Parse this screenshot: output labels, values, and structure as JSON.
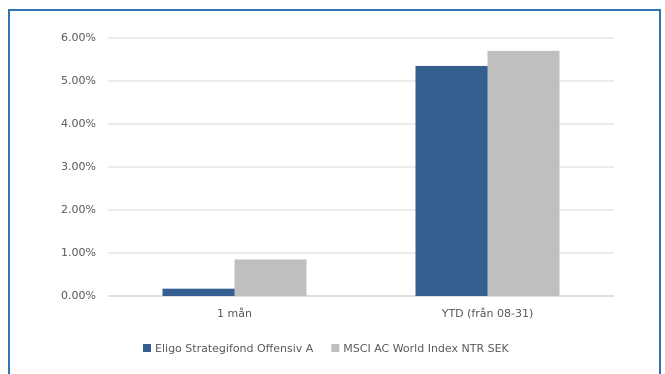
{
  "chart_data": {
    "type": "bar",
    "categories": [
      "1 mån",
      "YTD (från 08-31)"
    ],
    "series": [
      {
        "name": "Eligo Strategifond Offensiv A",
        "color": "#335f91",
        "values": [
          0.17,
          5.35
        ]
      },
      {
        "name": "MSCI AC World Index NTR SEK",
        "color": "#bfbfbf",
        "values": [
          0.85,
          5.7
        ]
      }
    ],
    "ylim": [
      0,
      6
    ],
    "yticks": [
      {
        "value": 0,
        "label": "0.00%"
      },
      {
        "value": 1,
        "label": "1.00%"
      },
      {
        "value": 2,
        "label": "2.00%"
      },
      {
        "value": 3,
        "label": "3.00%"
      },
      {
        "value": 4,
        "label": "4.00%"
      },
      {
        "value": 5,
        "label": "5.00%"
      },
      {
        "value": 6,
        "label": "6.00%"
      }
    ],
    "grid": true,
    "legend": "bottom"
  }
}
